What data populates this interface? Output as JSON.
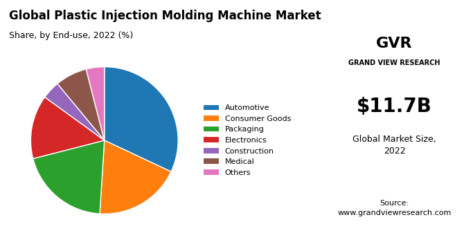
{
  "chart_data": {
    "type": "pie",
    "title": "Global Plastic Injection Molding Machine Market",
    "subtitle": "Share, by End-use, 2022 (%)",
    "categories": [
      "Automotive",
      "Consumer Goods",
      "Packaging",
      "Electronics",
      "Construction",
      "Medical",
      "Others"
    ],
    "values": [
      32,
      19,
      20,
      14,
      4,
      7,
      4
    ],
    "legend": "center left",
    "annotations": [
      "GVR",
      "GRAND VIEW RESEARCH",
      "$11.7B",
      "Global Market Size,\n2022",
      "Source:\nwww.grandviewresearch.com"
    ]
  }
}
